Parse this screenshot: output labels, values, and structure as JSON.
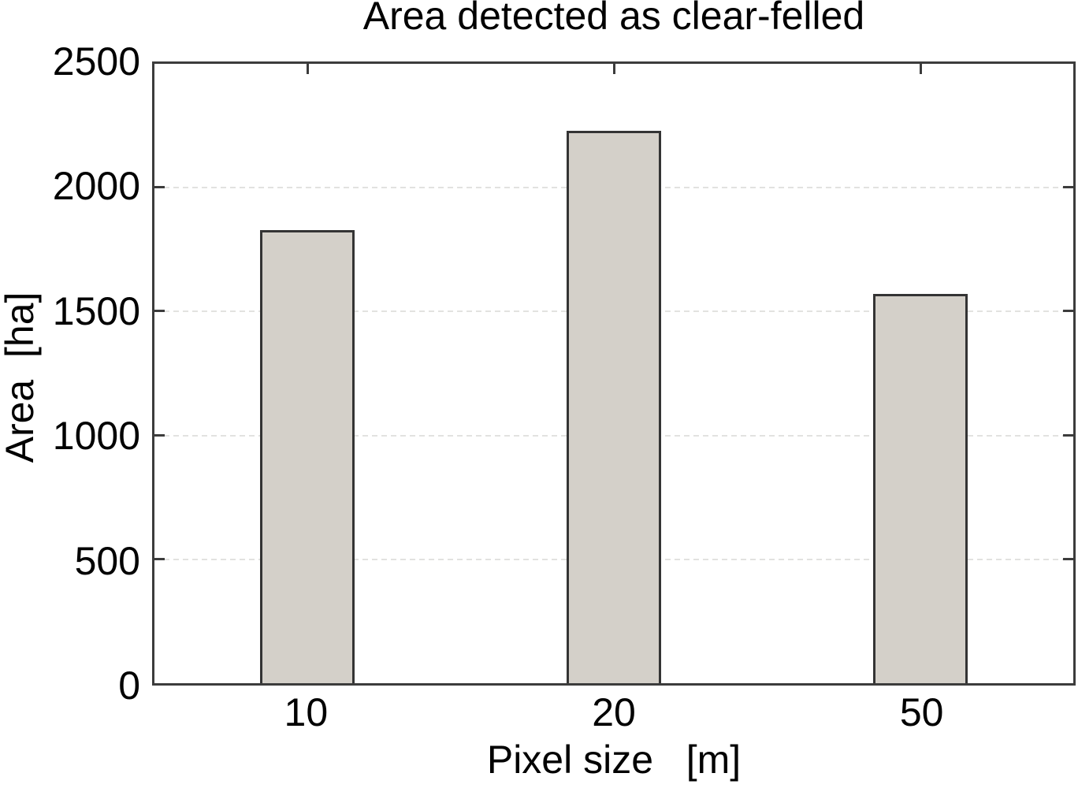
{
  "figure": {
    "background_color": "#ffffff",
    "axis_color": "#3c3c3c",
    "gridline_color": "#e2e2e0"
  },
  "chart_data": {
    "type": "bar",
    "title": "Area detected as clear-felled",
    "xlabel": "Pixel size   [m]",
    "ylabel": "Area  [ha]",
    "categories": [
      "10",
      "20",
      "50"
    ],
    "values": [
      1830,
      2230,
      1570
    ],
    "ylim": [
      0,
      2500
    ],
    "yticks": [
      "0",
      "500",
      "1000",
      "1500",
      "2000",
      "2500"
    ],
    "grid": "horizontal dashed gridlines at 500, 1000, 1500, 2000",
    "legend_position": "none",
    "bar_fill_color": "#d4d0c9",
    "bar_border_color": "#343434"
  }
}
